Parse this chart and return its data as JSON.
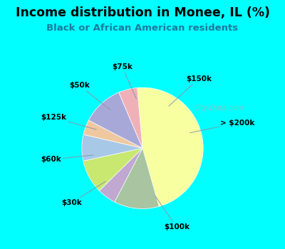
{
  "title": "Income distribution in Monee, IL (%)",
  "subtitle": "Black or African American residents",
  "bg_cyan": "#00FFFF",
  "bg_inner": "#cce8e0",
  "watermark": "City-Data.com",
  "slices": [
    {
      "label": "$100k",
      "value": 47,
      "color": "#F8FFA0"
    },
    {
      "label": "> $200k",
      "value": 12,
      "color": "#A8C4A0"
    },
    {
      "label": "$150k",
      "value": 5,
      "color": "#C0A8D0"
    },
    {
      "label": "$75k",
      "value": 9,
      "color": "#C8E870"
    },
    {
      "label": "$50k",
      "value": 7,
      "color": "#A8C8E8"
    },
    {
      "label": "$125k",
      "value": 4,
      "color": "#F0C8A0"
    },
    {
      "label": "$60k",
      "value": 11,
      "color": "#A8A8D8"
    },
    {
      "label": "$30k",
      "value": 5,
      "color": "#F0B0B8"
    }
  ],
  "label_angles": {
    "$100k": -75,
    "> $200k": 18,
    "$150k": 58,
    "$75k": 97,
    "$50k": 130,
    "$125k": 158,
    "$60k": 188,
    "$30k": 222
  }
}
